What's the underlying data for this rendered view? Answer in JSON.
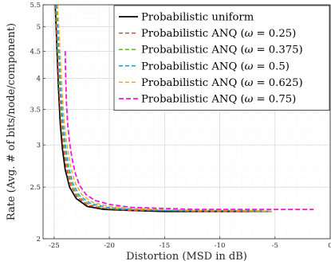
{
  "chart_data": {
    "type": "line",
    "title": "",
    "xlabel": "Distortion (MSD in dB)",
    "ylabel": "Rate (Avg. # of bits/node/component)",
    "xlim": [
      -26,
      0
    ],
    "ylim": [
      2,
      5.5
    ],
    "y_scale": "log",
    "grid": true,
    "legend_position": "top-right",
    "x_ticks": [
      -25,
      -20,
      -15,
      -10,
      -5,
      0
    ],
    "x_tick_labels": [
      "-25",
      "-20",
      "-15",
      "-10",
      "-5",
      "0"
    ],
    "y_ticks": [
      2,
      2.5,
      3,
      3.5,
      4,
      4.5,
      5,
      5.5
    ],
    "y_tick_labels": [
      "2",
      "2.5",
      "3",
      "3.5",
      "4",
      "4.5",
      "5",
      "5.5"
    ],
    "series": [
      {
        "name": "Probabilistic uniform",
        "legend": {
          "prefix": "Probabilistic uniform",
          "omega_label": "",
          "omega_value": ""
        },
        "color": "#000000",
        "dash": "solid",
        "width": 1.7,
        "x": [
          -24.9,
          -24.82,
          -24.72,
          -24.6,
          -24.45,
          -24.25,
          -24.0,
          -23.6,
          -23.0,
          -22.0,
          -20.5,
          -18.0,
          -15.0,
          -12.0,
          -9.0,
          -7.0,
          -5.3
        ],
        "y": [
          5.5,
          5.0,
          4.4,
          3.8,
          3.3,
          2.95,
          2.7,
          2.5,
          2.38,
          2.3,
          2.27,
          2.26,
          2.25,
          2.25,
          2.25,
          2.25,
          2.25
        ]
      },
      {
        "name": "Probabilistic ANQ (ω = 0.25)",
        "legend": {
          "prefix": "Probabilistic ANQ (",
          "omega_label": "ω",
          "omega_value": " = 0.25)"
        },
        "color": "#e8412c",
        "dash": "5,3",
        "width": 1.5,
        "x": [
          -24.88,
          -24.8,
          -24.68,
          -24.55,
          -24.38,
          -24.15,
          -23.9,
          -23.5,
          -22.9,
          -21.9,
          -20.4,
          -18.0,
          -15.0,
          -12.0,
          -9.0,
          -7.0,
          -5.3
        ],
        "y": [
          5.5,
          5.0,
          4.4,
          3.8,
          3.3,
          2.95,
          2.72,
          2.52,
          2.39,
          2.31,
          2.28,
          2.26,
          2.26,
          2.25,
          2.25,
          2.25,
          2.25
        ]
      },
      {
        "name": "Probabilistic ANQ (ω = 0.375)",
        "legend": {
          "prefix": "Probabilistic ANQ (",
          "omega_label": "ω",
          "omega_value": " = 0.375)"
        },
        "color": "#5fb236",
        "dash": "5,3",
        "width": 1.5,
        "x": [
          -24.84,
          -24.75,
          -24.62,
          -24.48,
          -24.3,
          -24.05,
          -23.8,
          -23.4,
          -22.8,
          -21.8,
          -20.3,
          -18.0,
          -15.0,
          -12.0,
          -9.0,
          -7.0,
          -5.3
        ],
        "y": [
          5.5,
          5.0,
          4.4,
          3.8,
          3.3,
          2.97,
          2.73,
          2.53,
          2.4,
          2.32,
          2.28,
          2.27,
          2.26,
          2.26,
          2.26,
          2.25,
          2.25
        ]
      },
      {
        "name": "Probabilistic ANQ (ω = 0.5)",
        "legend": {
          "prefix": "Probabilistic ANQ (",
          "omega_label": "ω",
          "omega_value": " = 0.5)"
        },
        "color": "#1f9ae0",
        "dash": "5,3",
        "width": 1.5,
        "x": [
          -24.78,
          -24.68,
          -24.55,
          -24.4,
          -24.2,
          -23.95,
          -23.7,
          -23.3,
          -22.7,
          -21.7,
          -20.2,
          -18.0,
          -15.0,
          -12.0,
          -9.0,
          -7.0,
          -5.3
        ],
        "y": [
          5.5,
          5.0,
          4.4,
          3.8,
          3.3,
          2.98,
          2.74,
          2.54,
          2.41,
          2.33,
          2.29,
          2.27,
          2.26,
          2.26,
          2.26,
          2.26,
          2.25
        ]
      },
      {
        "name": "Probabilistic ANQ (ω = 0.625)",
        "legend": {
          "prefix": "Probabilistic ANQ (",
          "omega_label": "ω",
          "omega_value": " = 0.625)"
        },
        "color": "#f0a820",
        "dash": "5,3",
        "width": 1.5,
        "x": [
          -24.7,
          -24.58,
          -24.44,
          -24.28,
          -24.08,
          -23.82,
          -23.55,
          -23.15,
          -22.5,
          -21.5,
          -20.0,
          -18.0,
          -15.0,
          -12.0,
          -9.0,
          -7.0,
          -5.3
        ],
        "y": [
          5.5,
          5.0,
          4.4,
          3.8,
          3.3,
          3.0,
          2.76,
          2.56,
          2.42,
          2.34,
          2.3,
          2.28,
          2.27,
          2.26,
          2.26,
          2.26,
          2.25
        ]
      },
      {
        "name": "Probabilistic ANQ (ω = 0.75)",
        "legend": {
          "prefix": "Probabilistic ANQ (",
          "omega_label": "ω",
          "omega_value": " = 0.75)"
        },
        "color": "#f017d8",
        "dash": "6,3",
        "width": 1.8,
        "x": [
          -24.0,
          -23.95,
          -23.88,
          -23.78,
          -23.62,
          -23.4,
          -23.1,
          -22.7,
          -22.1,
          -21.3,
          -20.0,
          -18.0,
          -15.0,
          -12.0,
          -9.0,
          -6.0,
          -3.5,
          -1.5
        ],
        "y": [
          4.5,
          4.0,
          3.6,
          3.3,
          3.05,
          2.85,
          2.66,
          2.52,
          2.42,
          2.36,
          2.32,
          2.29,
          2.28,
          2.27,
          2.27,
          2.27,
          2.27,
          2.27
        ]
      }
    ]
  }
}
